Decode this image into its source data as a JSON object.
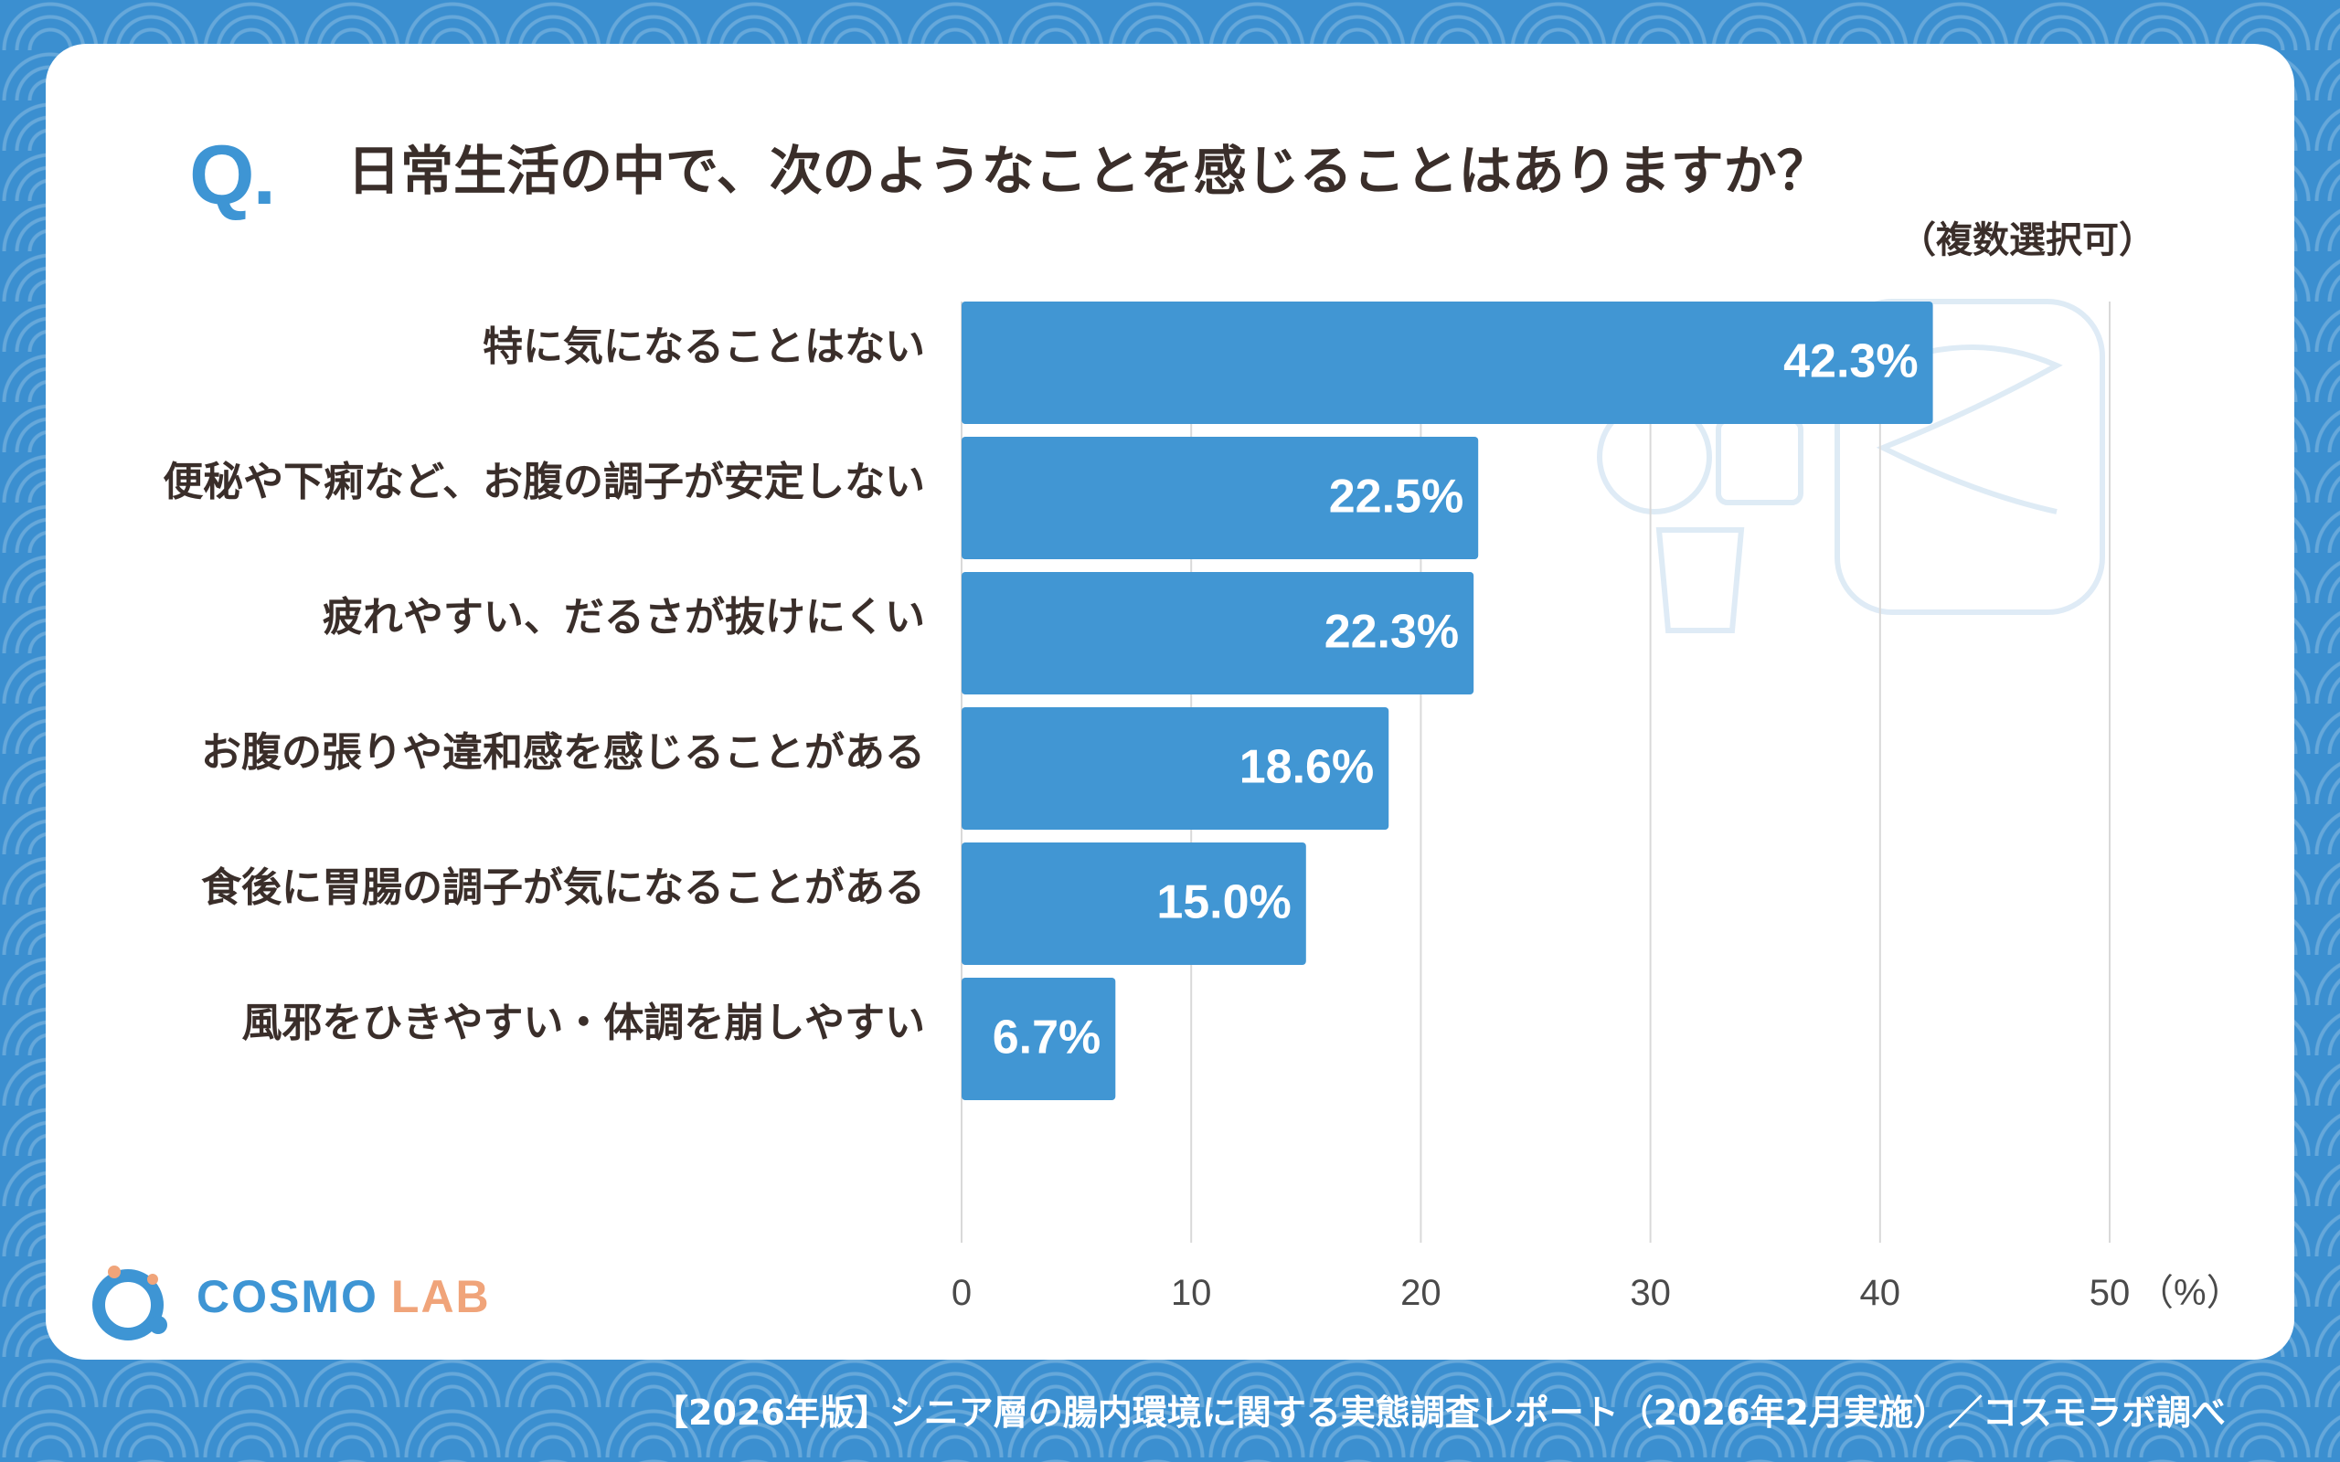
{
  "header": {
    "q_mark": "Q.",
    "title": "日常生活の中で、次のようなことを感じることはありますか？",
    "subtitle": "（複数選択可）"
  },
  "logo": {
    "brand": "COSMO",
    "suffix": "LAB"
  },
  "footer": {
    "source": "【2026年版】シニア層の腸内環境に関する実態調査レポート（2026年2月実施）／コスモラボ調べ"
  },
  "colors": {
    "bar": "#4196d3",
    "accent": "#3e95d4",
    "text": "#3a2e2a",
    "background": "#3b8fd0"
  },
  "chart_data": {
    "type": "bar",
    "orientation": "horizontal",
    "categories": [
      "特に気になることはない",
      "便秘や下痢など、お腹の調子が安定しない",
      "疲れやすい、だるさが抜けにくい",
      "お腹の張りや違和感を感じることがある",
      "食後に胃腸の調子が気になることがある",
      "風邪をひきやすい・体調を崩しやすい"
    ],
    "values": [
      42.3,
      22.5,
      22.3,
      18.6,
      15.0,
      6.7
    ],
    "value_labels": [
      "42.3%",
      "22.5%",
      "22.3%",
      "18.6%",
      "15.0%",
      "6.7%"
    ],
    "xlim": [
      0,
      50
    ],
    "xticks": [
      "0",
      "10",
      "20",
      "30",
      "40",
      "50"
    ],
    "xunit": "（%）",
    "grid": true
  }
}
